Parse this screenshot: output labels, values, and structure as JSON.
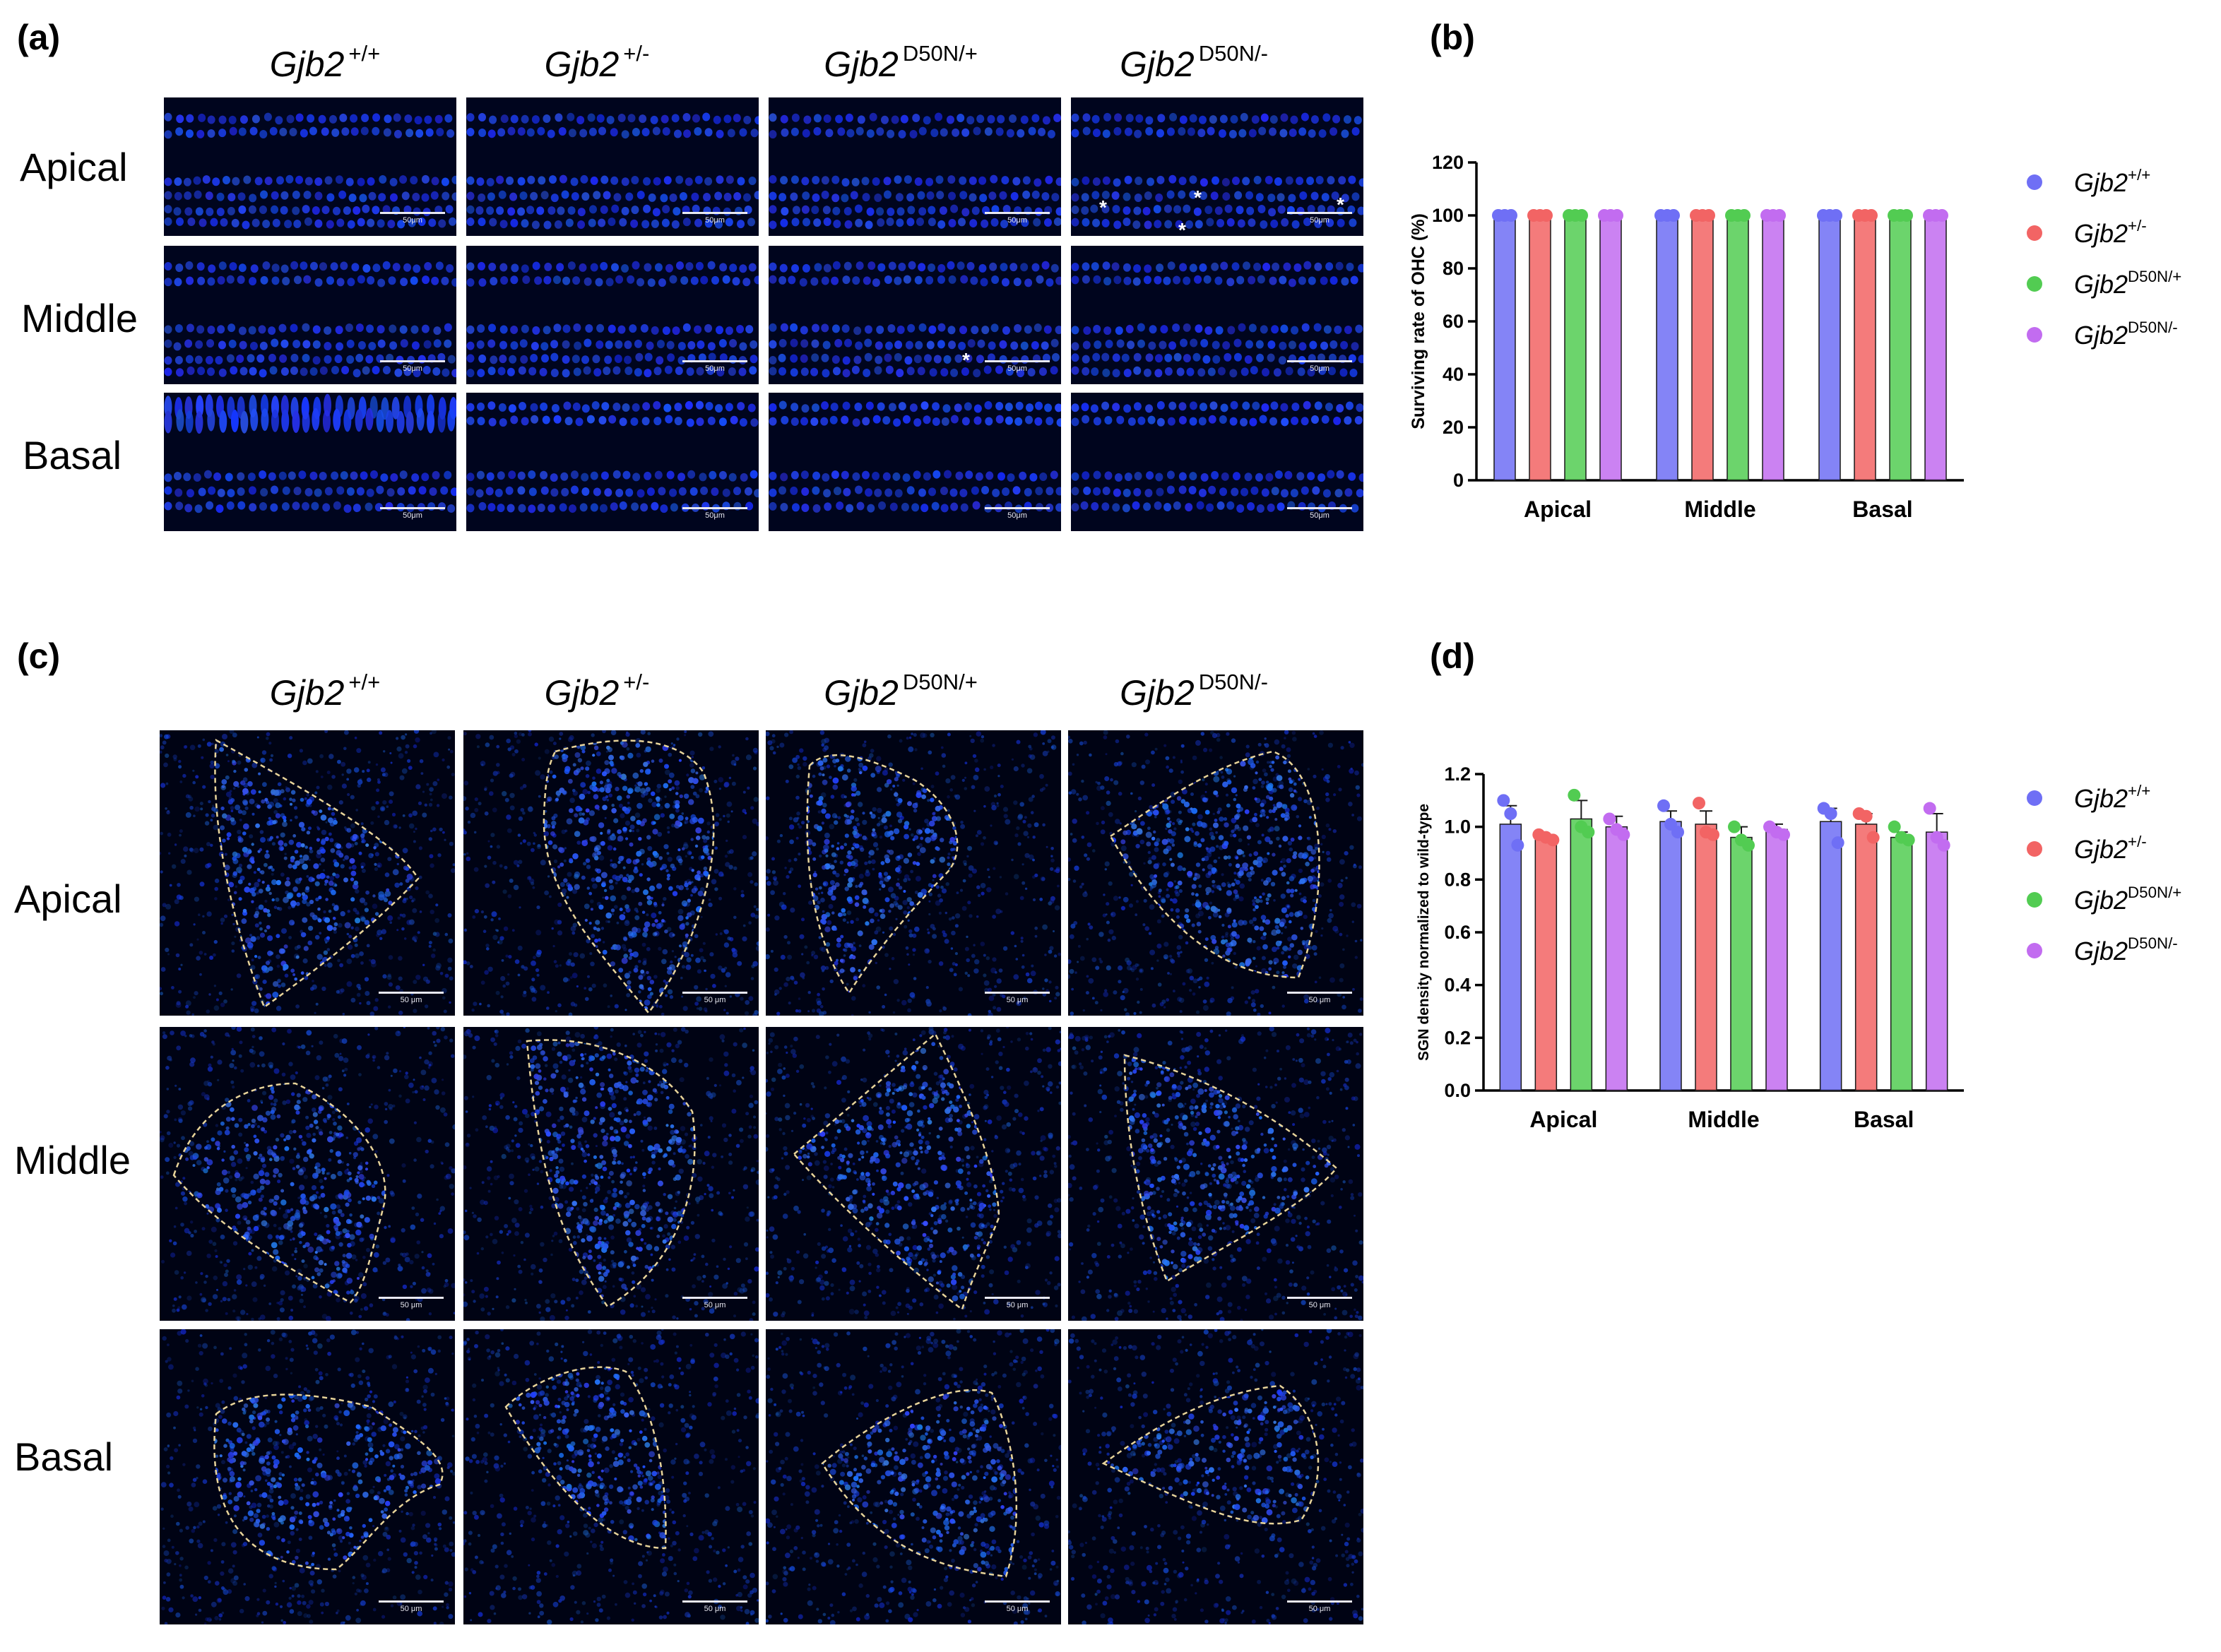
{
  "figure": {
    "panel_labels": {
      "a": "(a)",
      "b": "(b)",
      "c": "(c)",
      "d": "(d)"
    },
    "genotypes": [
      {
        "base": "Gjb2",
        "sup": "+/+"
      },
      {
        "base": "Gjb2",
        "sup": "+/-"
      },
      {
        "base": "Gjb2",
        "sup": "D50N/+"
      },
      {
        "base": "Gjb2",
        "sup": "D50N/-"
      }
    ],
    "rows": [
      "Apical",
      "Middle",
      "Basal"
    ],
    "scalebar_a": "50μm",
    "scalebar_c": "50 μm",
    "asterisk": "*"
  },
  "chart_data": [
    {
      "type": "bar",
      "title": "",
      "xlabel": "",
      "ylabel": "Surviving rate of OHC (%)",
      "categories": [
        "Apical",
        "Middle",
        "Basal"
      ],
      "ylim": [
        0,
        120
      ],
      "yticks": [
        0,
        20,
        40,
        60,
        80,
        100,
        120
      ],
      "legend_position": "right",
      "series": [
        {
          "name": "Gjb2+/+",
          "base": "Gjb2",
          "sup": "+/+",
          "color": "#6f6ff5",
          "values": [
            100,
            100,
            100
          ],
          "points": [
            [
              100,
              100,
              100
            ],
            [
              100,
              100,
              100
            ],
            [
              100,
              100,
              100
            ]
          ]
        },
        {
          "name": "Gjb2+/-",
          "base": "Gjb2",
          "sup": "+/-",
          "color": "#f26464",
          "values": [
            100,
            100,
            100
          ],
          "points": [
            [
              100,
              100,
              100
            ],
            [
              100,
              100,
              100
            ],
            [
              100,
              100,
              100
            ]
          ]
        },
        {
          "name": "Gjb2D50N/+",
          "base": "Gjb2",
          "sup": "D50N/+",
          "color": "#52cc52",
          "values": [
            100,
            100,
            100
          ],
          "points": [
            [
              100,
              100,
              100
            ],
            [
              100,
              100,
              100
            ],
            [
              100,
              100,
              100
            ]
          ]
        },
        {
          "name": "Gjb2D50N/-",
          "base": "Gjb2",
          "sup": "D50N/-",
          "color": "#c26cf0",
          "values": [
            100,
            100,
            100
          ],
          "points": [
            [
              100,
              100,
              100
            ],
            [
              100,
              100,
              100
            ],
            [
              100,
              100,
              100
            ]
          ]
        }
      ]
    },
    {
      "type": "bar",
      "title": "",
      "xlabel": "",
      "ylabel": "SGN density normalized to wild-type",
      "categories": [
        "Apical",
        "Middle",
        "Basal"
      ],
      "ylim": [
        0,
        1.2
      ],
      "yticks": [
        0.0,
        0.2,
        0.4,
        0.6,
        0.8,
        1.0,
        1.2
      ],
      "legend_position": "right",
      "series": [
        {
          "name": "Gjb2+/+",
          "base": "Gjb2",
          "sup": "+/+",
          "color": "#6f6ff5",
          "values": [
            1.01,
            1.02,
            1.02
          ],
          "errors": [
            0.07,
            0.04,
            0.05
          ],
          "points": [
            [
              1.1,
              1.05,
              0.93
            ],
            [
              1.08,
              1.01,
              0.98
            ],
            [
              1.07,
              1.05,
              0.94
            ]
          ]
        },
        {
          "name": "Gjb2+/-",
          "base": "Gjb2",
          "sup": "+/-",
          "color": "#f26464",
          "values": [
            0.96,
            1.01,
            1.01
          ],
          "errors": [
            0.01,
            0.05,
            0.04
          ],
          "points": [
            [
              0.97,
              0.96,
              0.95
            ],
            [
              1.09,
              0.98,
              0.97
            ],
            [
              1.05,
              1.04,
              0.96
            ]
          ]
        },
        {
          "name": "Gjb2D50N/+",
          "base": "Gjb2",
          "sup": "D50N/+",
          "color": "#52cc52",
          "values": [
            1.03,
            0.96,
            0.96
          ],
          "errors": [
            0.07,
            0.04,
            0.02
          ],
          "points": [
            [
              1.12,
              1.0,
              0.98
            ],
            [
              1.0,
              0.95,
              0.93
            ],
            [
              1.0,
              0.96,
              0.95
            ]
          ]
        },
        {
          "name": "Gjb2D50N/-",
          "base": "Gjb2",
          "sup": "D50N/-",
          "color": "#c26cf0",
          "values": [
            1.0,
            0.99,
            0.98
          ],
          "errors": [
            0.04,
            0.02,
            0.07
          ],
          "points": [
            [
              1.03,
              0.99,
              0.97
            ],
            [
              1.0,
              0.98,
              0.97
            ],
            [
              1.07,
              0.96,
              0.93
            ]
          ]
        }
      ]
    }
  ]
}
